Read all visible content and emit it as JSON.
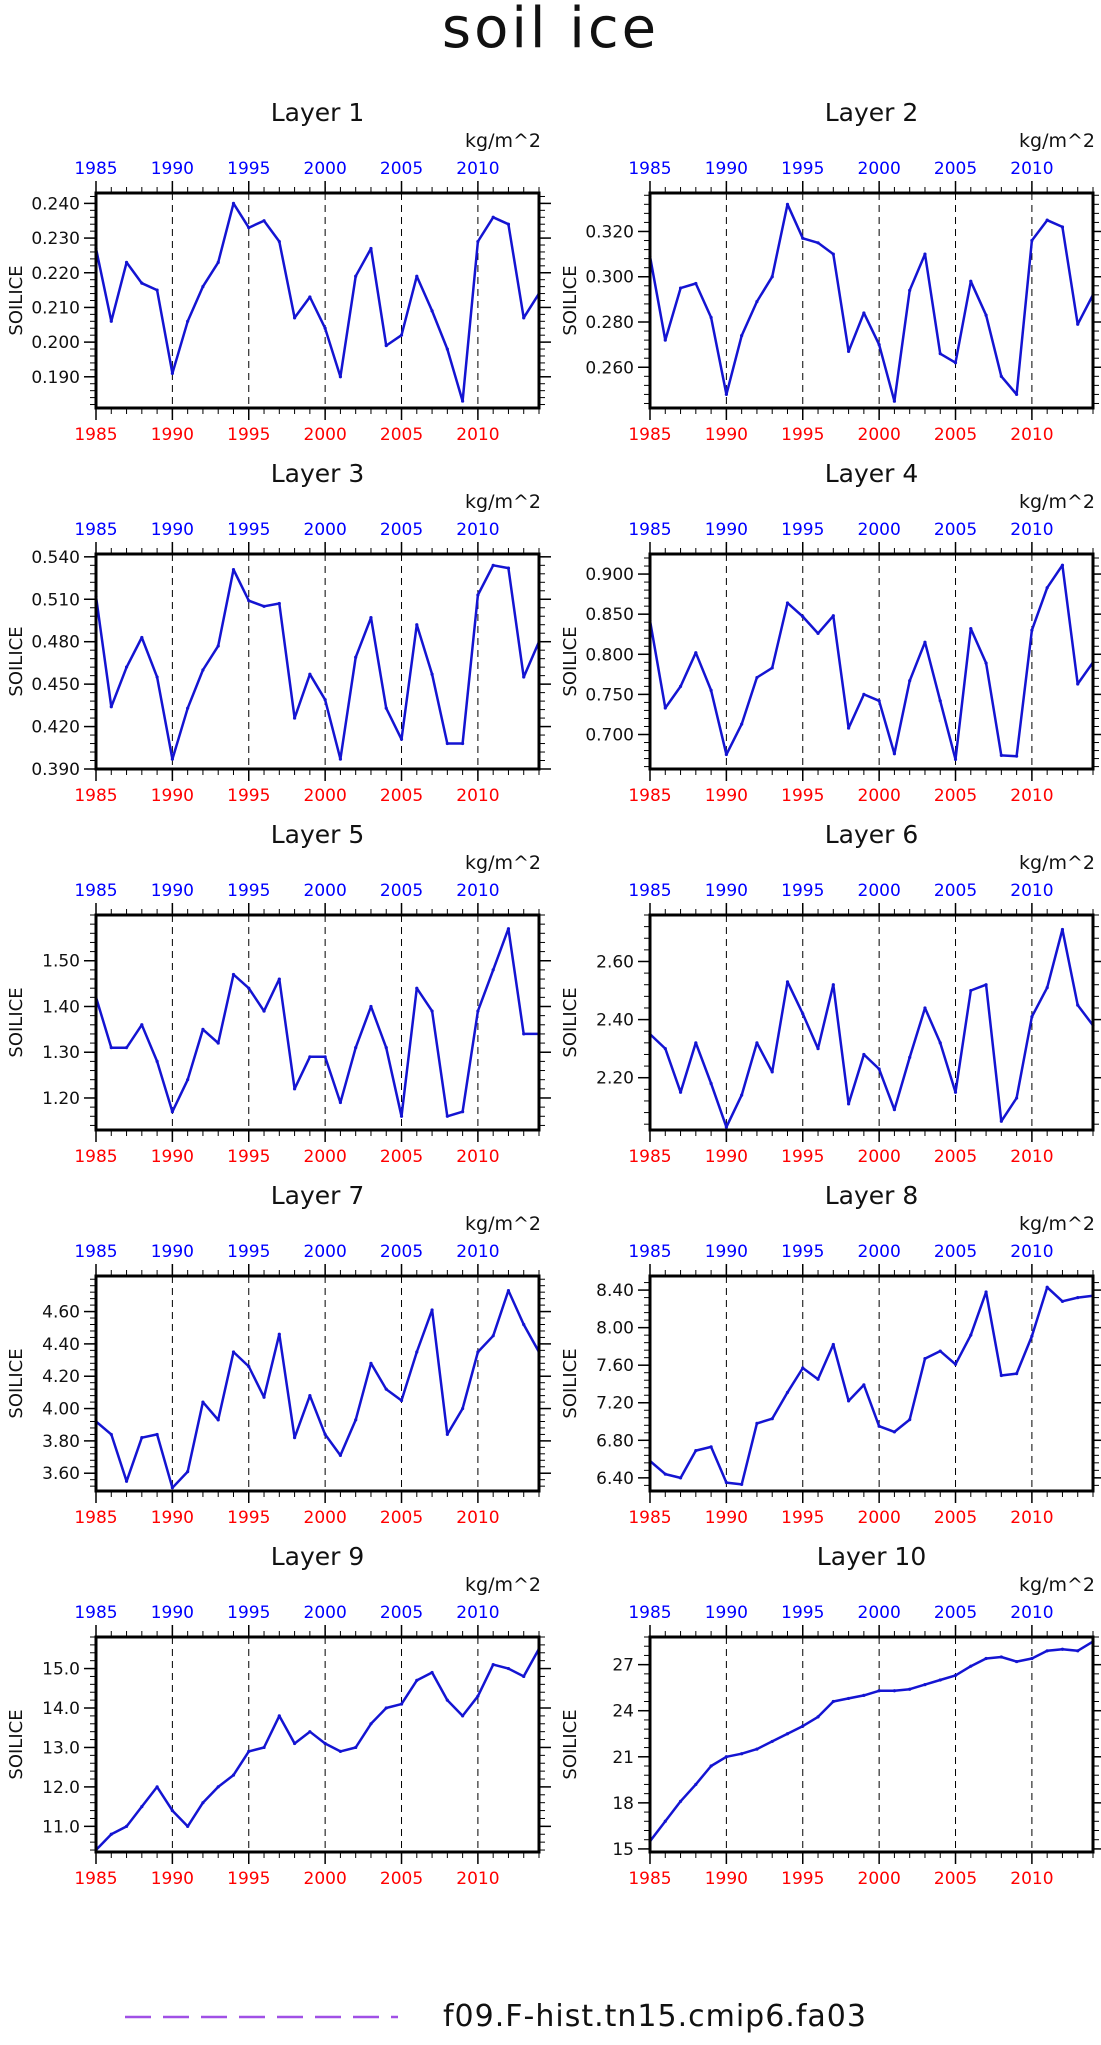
{
  "title": "soil ice",
  "legend": {
    "label": "f09.F-hist.tn15.cmip6.fa03",
    "line_color": "#a050e6"
  },
  "colors": {
    "line": "#1414d2",
    "top_axis": "#0000ff",
    "bottom_axis": "#ff0000",
    "frame": "#000000"
  },
  "chart_data": [
    {
      "type": "line",
      "title": "Layer 1",
      "units": "kg/m^2",
      "ylabel": "SOILICE",
      "xlim": [
        1985,
        2014
      ],
      "ylim": [
        0.181,
        0.243
      ],
      "yticks": [
        0.19,
        0.2,
        0.21,
        0.22,
        0.23,
        0.24
      ],
      "ydecimals": 3,
      "xticks": [
        1985,
        1990,
        1995,
        2000,
        2005,
        2010
      ],
      "dashed_years": [
        1990,
        1995,
        2000,
        2005,
        2010
      ],
      "series": [
        {
          "x": [
            1985,
            1986,
            1987,
            1988,
            1989,
            1990,
            1991,
            1992,
            1993,
            1994,
            1995,
            1996,
            1997,
            1998,
            1999,
            2000,
            2001,
            2002,
            2003,
            2004,
            2005,
            2006,
            2007,
            2008,
            2009,
            2010,
            2011,
            2012,
            2013,
            2014
          ],
          "values": [
            0.227,
            0.206,
            0.223,
            0.217,
            0.215,
            0.191,
            0.206,
            0.216,
            0.223,
            0.24,
            0.233,
            0.235,
            0.229,
            0.207,
            0.213,
            0.204,
            0.19,
            0.219,
            0.227,
            0.199,
            0.202,
            0.219,
            0.209,
            0.198,
            0.183,
            0.229,
            0.236,
            0.234,
            0.207,
            0.214
          ]
        }
      ]
    },
    {
      "type": "line",
      "title": "Layer 2",
      "units": "kg/m^2",
      "ylabel": "SOILICE",
      "xlim": [
        1985,
        2014
      ],
      "ylim": [
        0.242,
        0.337
      ],
      "yticks": [
        0.26,
        0.28,
        0.3,
        0.32
      ],
      "ydecimals": 3,
      "xticks": [
        1985,
        1990,
        1995,
        2000,
        2005,
        2010
      ],
      "dashed_years": [
        1990,
        1995,
        2000,
        2005,
        2010
      ],
      "series": [
        {
          "x": [
            1985,
            1986,
            1987,
            1988,
            1989,
            1990,
            1991,
            1992,
            1993,
            1994,
            1995,
            1996,
            1997,
            1998,
            1999,
            2000,
            2001,
            2002,
            2003,
            2004,
            2005,
            2006,
            2007,
            2008,
            2009,
            2010,
            2011,
            2012,
            2013,
            2014
          ],
          "values": [
            0.309,
            0.272,
            0.295,
            0.297,
            0.282,
            0.248,
            0.274,
            0.289,
            0.3,
            0.332,
            0.317,
            0.315,
            0.31,
            0.267,
            0.284,
            0.27,
            0.245,
            0.294,
            0.31,
            0.266,
            0.262,
            0.298,
            0.283,
            0.256,
            0.248,
            0.316,
            0.325,
            0.322,
            0.279,
            0.292
          ]
        }
      ]
    },
    {
      "type": "line",
      "title": "Layer 3",
      "units": "kg/m^2",
      "ylabel": "SOILICE",
      "xlim": [
        1985,
        2014
      ],
      "ylim": [
        0.39,
        0.542
      ],
      "yticks": [
        0.39,
        0.42,
        0.45,
        0.48,
        0.51,
        0.54
      ],
      "ydecimals": 3,
      "xticks": [
        1985,
        1990,
        1995,
        2000,
        2005,
        2010
      ],
      "dashed_years": [
        1990,
        1995,
        2000,
        2005,
        2010
      ],
      "series": [
        {
          "x": [
            1985,
            1986,
            1987,
            1988,
            1989,
            1990,
            1991,
            1992,
            1993,
            1994,
            1995,
            1996,
            1997,
            1998,
            1999,
            2000,
            2001,
            2002,
            2003,
            2004,
            2005,
            2006,
            2007,
            2008,
            2009,
            2010,
            2011,
            2012,
            2013,
            2014
          ],
          "values": [
            0.512,
            0.434,
            0.462,
            0.483,
            0.455,
            0.397,
            0.433,
            0.46,
            0.477,
            0.531,
            0.509,
            0.505,
            0.507,
            0.426,
            0.457,
            0.439,
            0.397,
            0.469,
            0.497,
            0.433,
            0.411,
            0.492,
            0.457,
            0.408,
            0.408,
            0.513,
            0.534,
            0.532,
            0.455,
            0.48
          ]
        }
      ]
    },
    {
      "type": "line",
      "title": "Layer 4",
      "units": "kg/m^2",
      "ylabel": "SOILICE",
      "xlim": [
        1985,
        2014
      ],
      "ylim": [
        0.657,
        0.925
      ],
      "yticks": [
        0.7,
        0.75,
        0.8,
        0.85,
        0.9
      ],
      "ydecimals": 3,
      "xticks": [
        1985,
        1990,
        1995,
        2000,
        2005,
        2010
      ],
      "dashed_years": [
        1990,
        1995,
        2000,
        2005,
        2010
      ],
      "series": [
        {
          "x": [
            1985,
            1986,
            1987,
            1988,
            1989,
            1990,
            1991,
            1992,
            1993,
            1994,
            1995,
            1996,
            1997,
            1998,
            1999,
            2000,
            2001,
            2002,
            2003,
            2004,
            2005,
            2006,
            2007,
            2008,
            2009,
            2010,
            2011,
            2012,
            2013,
            2014
          ],
          "values": [
            0.842,
            0.733,
            0.76,
            0.802,
            0.755,
            0.675,
            0.713,
            0.771,
            0.783,
            0.864,
            0.847,
            0.826,
            0.848,
            0.708,
            0.75,
            0.742,
            0.676,
            0.767,
            0.815,
            0.742,
            0.669,
            0.832,
            0.789,
            0.674,
            0.673,
            0.83,
            0.883,
            0.911,
            0.763,
            0.79
          ]
        }
      ]
    },
    {
      "type": "line",
      "title": "Layer 5",
      "units": "kg/m^2",
      "ylabel": "SOILICE",
      "xlim": [
        1985,
        2014
      ],
      "ylim": [
        1.13,
        1.6
      ],
      "yticks": [
        1.2,
        1.3,
        1.4,
        1.5
      ],
      "ydecimals": 2,
      "xticks": [
        1985,
        1990,
        1995,
        2000,
        2005,
        2010
      ],
      "dashed_years": [
        1990,
        1995,
        2000,
        2005,
        2010
      ],
      "series": [
        {
          "x": [
            1985,
            1986,
            1987,
            1988,
            1989,
            1990,
            1991,
            1992,
            1993,
            1994,
            1995,
            1996,
            1997,
            1998,
            1999,
            2000,
            2001,
            2002,
            2003,
            2004,
            2005,
            2006,
            2007,
            2008,
            2009,
            2010,
            2011,
            2012,
            2013,
            2014
          ],
          "values": [
            1.42,
            1.31,
            1.31,
            1.36,
            1.28,
            1.17,
            1.24,
            1.35,
            1.32,
            1.47,
            1.44,
            1.39,
            1.46,
            1.22,
            1.29,
            1.29,
            1.19,
            1.31,
            1.4,
            1.31,
            1.16,
            1.44,
            1.39,
            1.16,
            1.17,
            1.39,
            1.48,
            1.57,
            1.34,
            1.34
          ]
        }
      ]
    },
    {
      "type": "line",
      "title": "Layer 6",
      "units": "kg/m^2",
      "ylabel": "SOILICE",
      "xlim": [
        1985,
        2014
      ],
      "ylim": [
        2.02,
        2.76
      ],
      "yticks": [
        2.2,
        2.4,
        2.6
      ],
      "ydecimals": 2,
      "xticks": [
        1985,
        1990,
        1995,
        2000,
        2005,
        2010
      ],
      "dashed_years": [
        1990,
        1995,
        2000,
        2005,
        2010
      ],
      "series": [
        {
          "x": [
            1985,
            1986,
            1987,
            1988,
            1989,
            1990,
            1991,
            1992,
            1993,
            1994,
            1995,
            1996,
            1997,
            1998,
            1999,
            2000,
            2001,
            2002,
            2003,
            2004,
            2005,
            2006,
            2007,
            2008,
            2009,
            2010,
            2011,
            2012,
            2013,
            2014
          ],
          "values": [
            2.35,
            2.3,
            2.15,
            2.32,
            2.18,
            2.03,
            2.14,
            2.32,
            2.22,
            2.53,
            2.42,
            2.3,
            2.52,
            2.11,
            2.28,
            2.23,
            2.09,
            2.27,
            2.44,
            2.32,
            2.15,
            2.5,
            2.52,
            2.05,
            2.13,
            2.41,
            2.51,
            2.71,
            2.45,
            2.38
          ]
        }
      ]
    },
    {
      "type": "line",
      "title": "Layer 7",
      "units": "kg/m^2",
      "ylabel": "SOILICE",
      "xlim": [
        1985,
        2014
      ],
      "ylim": [
        3.49,
        4.82
      ],
      "yticks": [
        3.6,
        3.8,
        4.0,
        4.2,
        4.4,
        4.6
      ],
      "ydecimals": 2,
      "xticks": [
        1985,
        1990,
        1995,
        2000,
        2005,
        2010
      ],
      "dashed_years": [
        1990,
        1995,
        2000,
        2005,
        2010
      ],
      "series": [
        {
          "x": [
            1985,
            1986,
            1987,
            1988,
            1989,
            1990,
            1991,
            1992,
            1993,
            1994,
            1995,
            1996,
            1997,
            1998,
            1999,
            2000,
            2001,
            2002,
            2003,
            2004,
            2005,
            2006,
            2007,
            2008,
            2009,
            2010,
            2011,
            2012,
            2013,
            2014
          ],
          "values": [
            3.92,
            3.84,
            3.55,
            3.82,
            3.84,
            3.51,
            3.61,
            4.04,
            3.93,
            4.35,
            4.26,
            4.07,
            4.46,
            3.82,
            4.08,
            3.84,
            3.71,
            3.93,
            4.28,
            4.12,
            4.05,
            4.35,
            4.61,
            3.84,
            4.0,
            4.35,
            4.45,
            4.73,
            4.52,
            4.35
          ]
        }
      ]
    },
    {
      "type": "line",
      "title": "Layer 8",
      "units": "kg/m^2",
      "ylabel": "SOILICE",
      "xlim": [
        1985,
        2014
      ],
      "ylim": [
        6.26,
        8.55
      ],
      "yticks": [
        6.4,
        6.8,
        7.2,
        7.6,
        8.0,
        8.4
      ],
      "ydecimals": 2,
      "xticks": [
        1985,
        1990,
        1995,
        2000,
        2005,
        2010
      ],
      "dashed_years": [
        1990,
        1995,
        2000,
        2005,
        2010
      ],
      "series": [
        {
          "x": [
            1985,
            1986,
            1987,
            1988,
            1989,
            1990,
            1991,
            1992,
            1993,
            1994,
            1995,
            1996,
            1997,
            1998,
            1999,
            2000,
            2001,
            2002,
            2003,
            2004,
            2005,
            2006,
            2007,
            2008,
            2009,
            2010,
            2011,
            2012,
            2013,
            2014
          ],
          "values": [
            6.58,
            6.44,
            6.4,
            6.69,
            6.73,
            6.35,
            6.33,
            6.98,
            7.03,
            7.31,
            7.57,
            7.45,
            7.82,
            7.22,
            7.39,
            6.95,
            6.89,
            7.02,
            7.67,
            7.75,
            7.61,
            7.92,
            8.38,
            7.49,
            7.51,
            7.91,
            8.43,
            8.28,
            8.32,
            8.34
          ]
        }
      ]
    },
    {
      "type": "line",
      "title": "Layer 9",
      "units": "kg/m^2",
      "ylabel": "SOILICE",
      "xlim": [
        1985,
        2014
      ],
      "ylim": [
        10.35,
        15.8
      ],
      "yticks": [
        11.0,
        12.0,
        13.0,
        14.0,
        15.0
      ],
      "ydecimals": 1,
      "xticks": [
        1985,
        1990,
        1995,
        2000,
        2005,
        2010
      ],
      "dashed_years": [
        1990,
        1995,
        2000,
        2005,
        2010
      ],
      "series": [
        {
          "x": [
            1985,
            1986,
            1987,
            1988,
            1989,
            1990,
            1991,
            1992,
            1993,
            1994,
            1995,
            1996,
            1997,
            1998,
            1999,
            2000,
            2001,
            2002,
            2003,
            2004,
            2005,
            2006,
            2007,
            2008,
            2009,
            2010,
            2011,
            2012,
            2013,
            2014
          ],
          "values": [
            10.4,
            10.8,
            11.0,
            11.5,
            12.0,
            11.4,
            11.0,
            11.6,
            12.0,
            12.3,
            12.9,
            13.0,
            13.8,
            13.1,
            13.4,
            13.1,
            12.9,
            13.0,
            13.6,
            14.0,
            14.1,
            14.7,
            14.9,
            14.2,
            13.8,
            14.3,
            15.1,
            15.0,
            14.8,
            15.5
          ]
        }
      ]
    },
    {
      "type": "line",
      "title": "Layer 10",
      "units": "kg/m^2",
      "ylabel": "SOILICE",
      "xlim": [
        1985,
        2014
      ],
      "ylim": [
        14.8,
        28.8
      ],
      "yticks": [
        15,
        18,
        21,
        24,
        27
      ],
      "ydecimals": 0,
      "xticks": [
        1985,
        1990,
        1995,
        2000,
        2005,
        2010
      ],
      "dashed_years": [
        1990,
        1995,
        2000,
        2005,
        2010
      ],
      "series": [
        {
          "x": [
            1985,
            1986,
            1987,
            1988,
            1989,
            1990,
            1991,
            1992,
            1993,
            1994,
            1995,
            1996,
            1997,
            1998,
            1999,
            2000,
            2001,
            2002,
            2003,
            2004,
            2005,
            2006,
            2007,
            2008,
            2009,
            2010,
            2011,
            2012,
            2013,
            2014
          ],
          "values": [
            15.5,
            16.8,
            18.1,
            19.2,
            20.4,
            21.0,
            21.2,
            21.5,
            22.0,
            22.5,
            23.0,
            23.6,
            24.6,
            24.8,
            25.0,
            25.3,
            25.3,
            25.4,
            25.7,
            26.0,
            26.3,
            26.9,
            27.4,
            27.5,
            27.2,
            27.4,
            27.9,
            28.0,
            27.9,
            28.5
          ]
        }
      ]
    }
  ]
}
